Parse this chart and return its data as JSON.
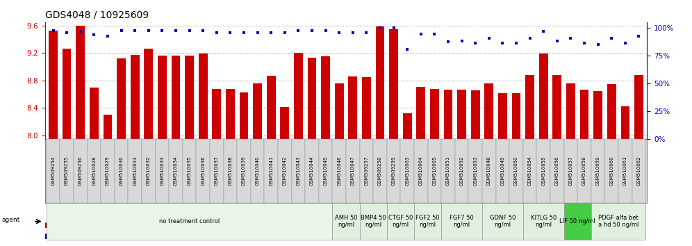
{
  "title": "GDS4048 / 10925609",
  "samples": [
    "GSM509254",
    "GSM509255",
    "GSM509256",
    "GSM510028",
    "GSM510029",
    "GSM510030",
    "GSM510031",
    "GSM510032",
    "GSM510033",
    "GSM510034",
    "GSM510035",
    "GSM510036",
    "GSM510037",
    "GSM510038",
    "GSM510039",
    "GSM510040",
    "GSM510041",
    "GSM510042",
    "GSM510043",
    "GSM510044",
    "GSM510045",
    "GSM510046",
    "GSM510047",
    "GSM509257",
    "GSM509258",
    "GSM509259",
    "GSM510063",
    "GSM510064",
    "GSM510065",
    "GSM510051",
    "GSM510052",
    "GSM510053",
    "GSM510048",
    "GSM510049",
    "GSM510050",
    "GSM510054",
    "GSM510055",
    "GSM510056",
    "GSM510057",
    "GSM510058",
    "GSM510059",
    "GSM510060",
    "GSM510061",
    "GSM510062"
  ],
  "bar_values": [
    9.53,
    9.26,
    9.6,
    8.7,
    8.3,
    9.12,
    9.17,
    9.26,
    9.16,
    9.16,
    9.16,
    9.19,
    8.68,
    8.68,
    8.63,
    8.76,
    8.87,
    8.42,
    9.2,
    9.13,
    9.15,
    8.76,
    8.86,
    8.85,
    9.59,
    9.55,
    8.32,
    8.71,
    8.68,
    8.67,
    8.67,
    8.66,
    8.76,
    8.62,
    8.62,
    8.88,
    9.19,
    8.88,
    8.76,
    8.67,
    8.65,
    8.75,
    8.43,
    8.88
  ],
  "percentile_values": [
    93,
    91,
    92,
    89,
    88,
    93,
    93,
    93,
    93,
    93,
    93,
    93,
    91,
    91,
    91,
    91,
    91,
    91,
    93,
    93,
    93,
    91,
    91,
    91,
    95,
    95,
    77,
    90,
    90,
    83,
    84,
    82,
    86,
    82,
    82,
    86,
    92,
    84,
    86,
    82,
    81,
    86,
    82,
    88
  ],
  "ylim_left": [
    7.95,
    9.65
  ],
  "ylim_right": [
    0,
    105
  ],
  "yticks_left": [
    8.0,
    8.4,
    8.8,
    9.2,
    9.6
  ],
  "yticks_right": [
    0,
    25,
    50,
    75,
    100
  ],
  "bar_color": "#cc0000",
  "dot_color": "#0000bb",
  "grid_color": "#555555",
  "agent_groups": [
    {
      "label": "no treatment control",
      "start": 0,
      "end": 21,
      "color": "#e8f5e8",
      "border": "#999999"
    },
    {
      "label": "AMH 50\nng/ml",
      "start": 21,
      "end": 23,
      "color": "#dff0df",
      "border": "#999999"
    },
    {
      "label": "BMP4 50\nng/ml",
      "start": 23,
      "end": 25,
      "color": "#dff0df",
      "border": "#999999"
    },
    {
      "label": "CTGF 50\nng/ml",
      "start": 25,
      "end": 27,
      "color": "#dff0df",
      "border": "#999999"
    },
    {
      "label": "FGF2 50\nng/ml",
      "start": 27,
      "end": 29,
      "color": "#dff0df",
      "border": "#999999"
    },
    {
      "label": "FGF7 50\nng/ml",
      "start": 29,
      "end": 32,
      "color": "#dff0df",
      "border": "#999999"
    },
    {
      "label": "GDNF 50\nng/ml",
      "start": 32,
      "end": 35,
      "color": "#dff0df",
      "border": "#999999"
    },
    {
      "label": "KITLG 50\nng/ml",
      "start": 35,
      "end": 38,
      "color": "#dff0df",
      "border": "#999999"
    },
    {
      "label": "LIF 50 ng/ml",
      "start": 38,
      "end": 40,
      "color": "#44cc44",
      "border": "#999999"
    },
    {
      "label": "PDGF alfa bet\na hd 50 ng/ml",
      "start": 40,
      "end": 44,
      "color": "#dff0df",
      "border": "#999999"
    }
  ],
  "xlabel_fontsize": 5.0,
  "title_fontsize": 10,
  "tick_label_fontsize": 7.5,
  "agent_fontsize": 6.0,
  "legend_fontsize": 7.5,
  "bar_xlim": [
    -0.6,
    43.6
  ]
}
